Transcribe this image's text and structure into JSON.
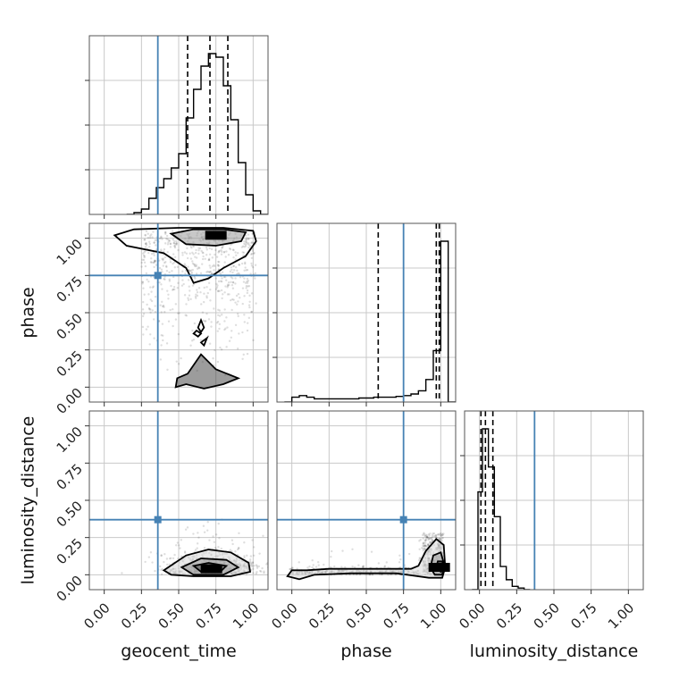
{
  "chart_data": {
    "type": "corner",
    "parameters": [
      "geocent_time",
      "phase",
      "luminosity_distance"
    ],
    "ticks": [
      "0.00",
      "0.25",
      "0.50",
      "0.75",
      "1.00"
    ],
    "xlim": [
      -0.1,
      1.1
    ],
    "ylim": [
      -0.1,
      1.1
    ],
    "truths": {
      "geocent_time": 0.36,
      "phase": 0.75,
      "luminosity_distance": 0.37
    },
    "truth_color": "#4682b4",
    "grid": true,
    "diagonal": [
      {
        "parameter": "geocent_time",
        "quantiles": [
          0.56,
          0.71,
          0.83
        ],
        "bins": [
          0.15,
          0.2,
          0.25,
          0.3,
          0.35,
          0.4,
          0.45,
          0.5,
          0.55,
          0.6,
          0.65,
          0.7,
          0.75,
          0.8,
          0.85,
          0.9,
          0.95,
          1.0,
          1.05
        ],
        "counts": [
          0,
          0.01,
          0.03,
          0.09,
          0.15,
          0.2,
          0.26,
          0.34,
          0.54,
          0.7,
          0.83,
          0.9,
          0.88,
          0.72,
          0.53,
          0.29,
          0.11,
          0.02,
          0
        ]
      },
      {
        "parameter": "phase",
        "quantiles": [
          0.58,
          0.97,
          0.99
        ],
        "bins": [
          -0.05,
          0.0,
          0.05,
          0.1,
          0.15,
          0.2,
          0.25,
          0.3,
          0.35,
          0.4,
          0.45,
          0.5,
          0.55,
          0.6,
          0.65,
          0.7,
          0.75,
          0.8,
          0.85,
          0.9,
          0.95,
          1.0,
          1.05
        ],
        "counts": [
          0,
          0.03,
          0.04,
          0.03,
          0.02,
          0.02,
          0.02,
          0.02,
          0.02,
          0.02,
          0.025,
          0.025,
          0.03,
          0.03,
          0.03,
          0.035,
          0.04,
          0.05,
          0.07,
          0.14,
          0.32,
          1.0,
          0
        ]
      },
      {
        "parameter": "luminosity_distance",
        "quantiles": [
          0.01,
          0.04,
          0.09
        ],
        "bins": [
          -0.05,
          -0.01,
          0.02,
          0.06,
          0.1,
          0.14,
          0.18,
          0.22,
          0.26,
          0.3
        ],
        "counts": [
          0,
          0.59,
          0.97,
          0.74,
          0.44,
          0.14,
          0.06,
          0.02,
          0.01,
          0
        ]
      }
    ],
    "panels": [
      {
        "x": "geocent_time",
        "y": "phase",
        "mode_center": [
          0.75,
          1.02
        ],
        "contours": [
          [
            [
              0.07,
              1.02
            ],
            [
              0.2,
              1.06
            ],
            [
              0.5,
              1.07
            ],
            [
              0.8,
              1.07
            ],
            [
              1.0,
              1.05
            ],
            [
              1.02,
              0.98
            ],
            [
              0.95,
              0.88
            ],
            [
              0.8,
              0.8
            ],
            [
              0.7,
              0.73
            ],
            [
              0.6,
              0.7
            ],
            [
              0.55,
              0.8
            ],
            [
              0.4,
              0.9
            ],
            [
              0.15,
              0.95
            ],
            [
              0.07,
              1.02
            ]
          ],
          [
            [
              0.45,
              1.03
            ],
            [
              0.6,
              1.06
            ],
            [
              0.8,
              1.06
            ],
            [
              0.95,
              1.04
            ],
            [
              0.92,
              0.98
            ],
            [
              0.75,
              0.95
            ],
            [
              0.55,
              0.96
            ],
            [
              0.45,
              1.03
            ]
          ],
          [
            [
              0.56,
              0.09
            ],
            [
              0.65,
              0.22
            ],
            [
              0.75,
              0.12
            ],
            [
              0.9,
              0.06
            ],
            [
              0.8,
              0.02
            ],
            [
              0.67,
              -0.01
            ],
            [
              0.55,
              0.02
            ],
            [
              0.48,
              0.0
            ],
            [
              0.49,
              0.06
            ],
            [
              0.56,
              0.09
            ]
          ],
          [
            [
              0.65,
              0.45
            ],
            [
              0.67,
              0.4
            ],
            [
              0.65,
              0.37
            ],
            [
              0.63,
              0.4
            ],
            [
              0.65,
              0.45
            ]
          ],
          [
            [
              0.65,
              0.36
            ],
            [
              0.62,
              0.38
            ],
            [
              0.6,
              0.36
            ],
            [
              0.63,
              0.34
            ],
            [
              0.65,
              0.36
            ]
          ],
          [
            [
              0.69,
              0.33
            ],
            [
              0.67,
              0.28
            ],
            [
              0.65,
              0.3
            ],
            [
              0.69,
              0.33
            ]
          ]
        ]
      },
      {
        "x": "geocent_time",
        "y": "luminosity_distance",
        "mode_center": [
          0.72,
          0.04
        ],
        "contours": [
          [
            [
              0.4,
              0.03
            ],
            [
              0.55,
              0.13
            ],
            [
              0.7,
              0.17
            ],
            [
              0.85,
              0.15
            ],
            [
              0.97,
              0.08
            ],
            [
              0.98,
              0.02
            ],
            [
              0.85,
              -0.01
            ],
            [
              0.6,
              -0.01
            ],
            [
              0.45,
              0.0
            ],
            [
              0.4,
              0.03
            ]
          ],
          [
            [
              0.52,
              0.05
            ],
            [
              0.65,
              0.11
            ],
            [
              0.82,
              0.1
            ],
            [
              0.9,
              0.05
            ],
            [
              0.8,
              0.0
            ],
            [
              0.6,
              0.0
            ],
            [
              0.52,
              0.05
            ]
          ],
          [
            [
              0.6,
              0.06
            ],
            [
              0.7,
              0.08
            ],
            [
              0.82,
              0.06
            ],
            [
              0.78,
              0.02
            ],
            [
              0.65,
              0.02
            ],
            [
              0.6,
              0.06
            ]
          ]
        ]
      },
      {
        "x": "phase",
        "y": "luminosity_distance",
        "mode_center": [
          0.99,
          0.05
        ],
        "contours": [
          [
            [
              -0.03,
              -0.01
            ],
            [
              0.0,
              0.03
            ],
            [
              0.1,
              0.03
            ],
            [
              0.25,
              0.04
            ],
            [
              0.4,
              0.04
            ],
            [
              0.6,
              0.04
            ],
            [
              0.8,
              0.04
            ],
            [
              0.85,
              0.06
            ],
            [
              0.9,
              0.16
            ],
            [
              0.97,
              0.24
            ],
            [
              1.02,
              0.2
            ],
            [
              1.03,
              0.05
            ],
            [
              1.01,
              -0.02
            ],
            [
              0.92,
              -0.02
            ],
            [
              0.7,
              0.01
            ],
            [
              0.4,
              0.01
            ],
            [
              0.15,
              0.0
            ],
            [
              0.05,
              -0.03
            ],
            [
              -0.03,
              -0.01
            ]
          ],
          [
            [
              0.93,
              0.05
            ],
            [
              0.95,
              0.13
            ],
            [
              1.0,
              0.15
            ],
            [
              1.02,
              0.08
            ],
            [
              1.01,
              0.0
            ],
            [
              0.96,
              0.0
            ],
            [
              0.93,
              0.05
            ]
          ],
          [
            [
              0.97,
              0.05
            ],
            [
              0.98,
              0.09
            ],
            [
              1.01,
              0.09
            ],
            [
              1.02,
              0.05
            ],
            [
              1.0,
              0.02
            ],
            [
              0.97,
              0.05
            ]
          ]
        ]
      }
    ]
  }
}
